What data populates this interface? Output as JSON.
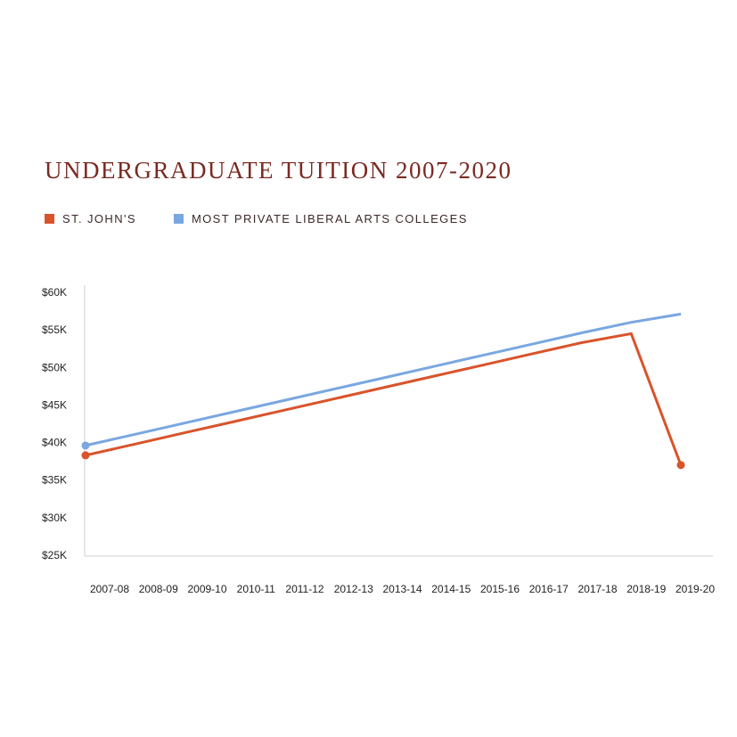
{
  "chart_data": {
    "type": "line",
    "title": "UNDERGRADUATE TUITION 2007-2020",
    "xlabel": "",
    "ylabel": "",
    "categories": [
      "2007-08",
      "2008-09",
      "2009-10",
      "2010-11",
      "2011-12",
      "2012-13",
      "2013-14",
      "2014-15",
      "2015-16",
      "2016-17",
      "2017-18",
      "2018-19",
      "2019-20"
    ],
    "series": [
      {
        "name": "ST. JOHN'S",
        "color": "#d9532b",
        "values": [
          38300,
          39800,
          41300,
          42800,
          44300,
          45800,
          47300,
          48800,
          50300,
          51800,
          53300,
          54500,
          37000
        ],
        "markers": [
          0,
          12
        ]
      },
      {
        "name": "MOST PRIVATE LIBERAL ARTS COLLEGES",
        "color": "#79a7e0",
        "values": [
          39600,
          41100,
          42600,
          44100,
          45600,
          47100,
          48600,
          50100,
          51600,
          53100,
          54600,
          56000,
          57100
        ],
        "markers": [
          0
        ]
      }
    ],
    "y_ticks": [
      "$25K",
      "$30K",
      "$35K",
      "$40K",
      "$45K",
      "$50K",
      "$55K",
      "$60K"
    ],
    "ylim": [
      25000,
      60000
    ],
    "grid": false,
    "legend_position": "top-left"
  }
}
